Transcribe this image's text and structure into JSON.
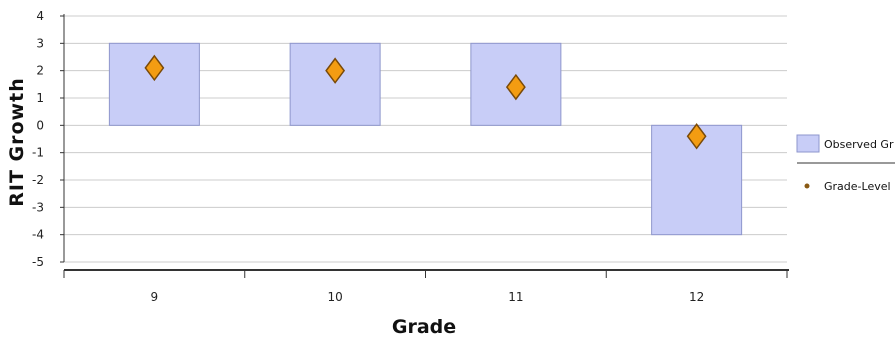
{
  "chart_data": {
    "type": "bar",
    "categories": [
      "9",
      "10",
      "11",
      "12"
    ],
    "series": [
      {
        "name": "Observed Gr",
        "kind": "bar",
        "values": [
          3,
          3,
          3,
          -4
        ]
      },
      {
        "name": "Grade-Level",
        "kind": "marker",
        "values": [
          2.1,
          2.0,
          1.4,
          -0.4
        ]
      }
    ],
    "xlabel": "Grade",
    "ylabel": "RIT Growth",
    "ylim": [
      -5,
      4
    ],
    "yticks": [
      "4",
      "3",
      "2",
      "1",
      "0",
      "-1",
      "-2",
      "-3",
      "-4",
      "-5"
    ],
    "grid": true,
    "legend_position": "right",
    "colors": {
      "bar_fill": "#c8cdf7",
      "bar_stroke": "#8e96cc",
      "marker_fill": "#f39c12",
      "marker_stroke": "#7a4a08",
      "legend_dot": "#8a5a14",
      "grid": "#cccccc",
      "axis": "#333333"
    }
  }
}
